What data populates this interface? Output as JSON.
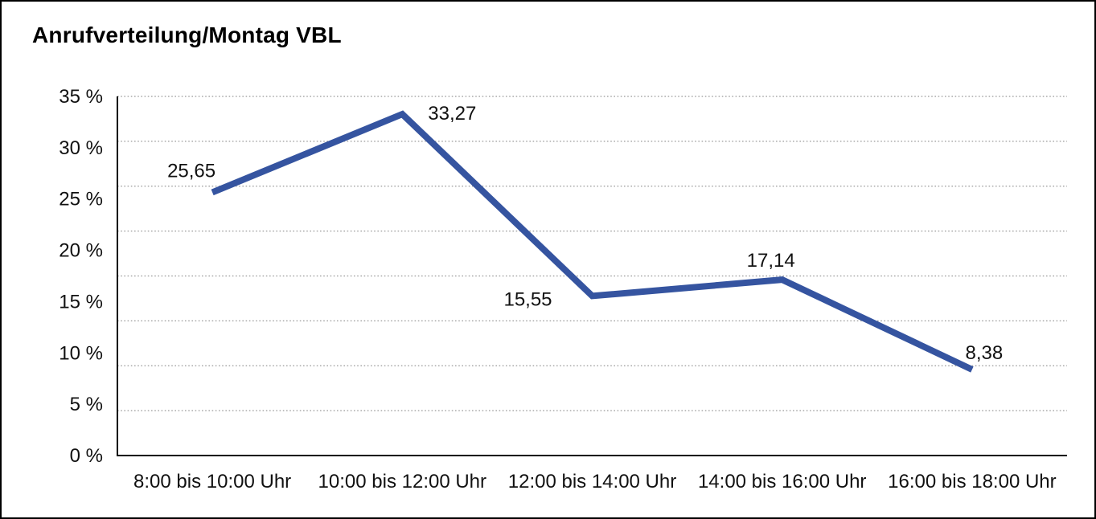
{
  "window": {
    "background": "#ffffff",
    "border_color": "#000000"
  },
  "header": {
    "title": "Anrufverteilung/Montag VBL"
  },
  "chart_data": {
    "type": "line",
    "title": "Anrufverteilung/Montag VBL",
    "categories": [
      "8:00 bis 10:00 Uhr",
      "10:00 bis 12:00 Uhr",
      "12:00 bis 14:00 Uhr",
      "14:00 bis 16:00 Uhr",
      "16:00 bis 18:00 Uhr"
    ],
    "values": [
      25.65,
      33.27,
      15.55,
      17.14,
      8.38
    ],
    "point_labels": [
      "25,65",
      "33,27",
      "15,55",
      "17,14",
      "8,38"
    ],
    "unit": "%",
    "xlabel": "",
    "ylabel": "",
    "ylim": [
      0,
      35
    ],
    "y_tick_labels": [
      "35 %",
      "30 %",
      "25 %",
      "20 %",
      "15 %",
      "10 %",
      "5 %",
      "0 %"
    ],
    "grid": "horizontal-dotted",
    "gridline_count": 8,
    "legend": "none",
    "line_color": "#3554A0",
    "axis_color": "#000000",
    "gridline_color": "#999999",
    "text_color": "#111111"
  }
}
